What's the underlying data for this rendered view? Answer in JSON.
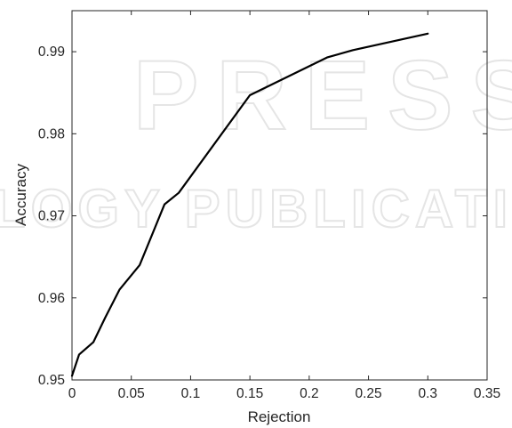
{
  "chart_data": {
    "type": "line",
    "xlabel": "Rejection",
    "ylabel": "Accuracy",
    "xlim": [
      0,
      0.35
    ],
    "ylim": [
      0.95,
      0.995
    ],
    "xticks": [
      "0",
      "0.05",
      "0.1",
      "0.15",
      "0.2",
      "0.25",
      "0.3",
      "0.35"
    ],
    "yticks": [
      "0.95",
      "0.96",
      "0.97",
      "0.98",
      "0.99"
    ],
    "grid": false,
    "series": [
      {
        "color": "#000000",
        "x": [
          0,
          0.006,
          0.018,
          0.028,
          0.04,
          0.057,
          0.078,
          0.09,
          0.15,
          0.215,
          0.237,
          0.3
        ],
        "y": [
          0.9505,
          0.9531,
          0.9546,
          0.9576,
          0.961,
          0.964,
          0.9714,
          0.9728,
          0.9847,
          0.9893,
          0.9902,
          0.9922
        ]
      }
    ]
  },
  "watermark": {
    "line1": "PRESS",
    "line2": "LOGY PUBLICATIONS"
  }
}
